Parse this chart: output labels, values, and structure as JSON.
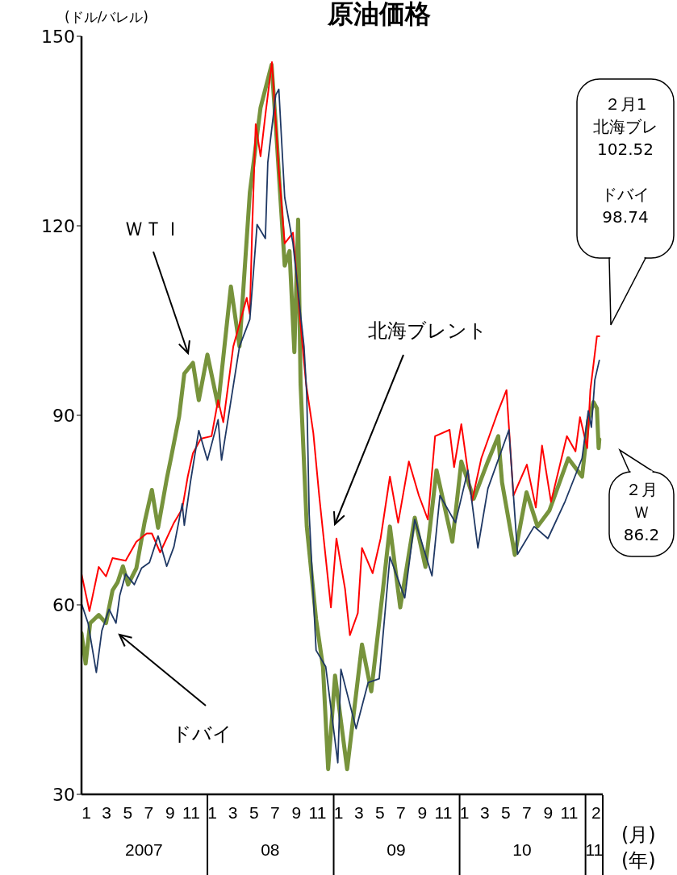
{
  "chart_data": {
    "type": "line",
    "title": "原油価格",
    "ylabel": "(ドル/バレル)",
    "xlabel": "(月)",
    "x2label": "(年)",
    "marker": "none",
    "xlim": [
      "2007-01-01",
      "2011-02-20"
    ],
    "ylim": [
      30,
      150
    ],
    "yticks": [
      30,
      60,
      90,
      120,
      150
    ],
    "xticks": [
      {
        "value": "2007-01-15",
        "label": "1"
      },
      {
        "value": "2007-03-15",
        "label": "3"
      },
      {
        "value": "2007-05-15",
        "label": "5"
      },
      {
        "value": "2007-07-15",
        "label": "7"
      },
      {
        "value": "2007-09-15",
        "label": "9"
      },
      {
        "value": "2007-11-15",
        "label": "11"
      },
      {
        "value": "2008-01-15",
        "label": "1"
      },
      {
        "value": "2008-03-15",
        "label": "3"
      },
      {
        "value": "2008-05-15",
        "label": "5"
      },
      {
        "value": "2008-07-15",
        "label": "7"
      },
      {
        "value": "2008-09-15",
        "label": "9"
      },
      {
        "value": "2008-11-15",
        "label": "11"
      },
      {
        "value": "2009-01-15",
        "label": "1"
      },
      {
        "value": "2009-03-15",
        "label": "3"
      },
      {
        "value": "2009-05-15",
        "label": "5"
      },
      {
        "value": "2009-07-15",
        "label": "7"
      },
      {
        "value": "2009-09-15",
        "label": "9"
      },
      {
        "value": "2009-11-15",
        "label": "11"
      },
      {
        "value": "2010-01-15",
        "label": "1"
      },
      {
        "value": "2010-03-15",
        "label": "3"
      },
      {
        "value": "2010-05-15",
        "label": "5"
      },
      {
        "value": "2010-07-15",
        "label": "7"
      },
      {
        "value": "2010-09-15",
        "label": "9"
      },
      {
        "value": "2010-11-15",
        "label": "11"
      },
      {
        "value": "2011-02-01",
        "label": "2"
      }
    ],
    "x2lim": [
      "2007-01-01",
      "2011-02-20"
    ],
    "x2ticks": [
      {
        "value": "2007-07-01",
        "label": "2007"
      },
      {
        "value": "2008-07-01",
        "label": "08"
      },
      {
        "value": "2009-07-01",
        "label": "09"
      },
      {
        "value": "2010-07-01",
        "label": "10"
      },
      {
        "value": "2011-01-26",
        "label": "11"
      }
    ],
    "series": [
      {
        "color": "#77933c",
        "x": [
          "2007-01-01",
          "2007-01-13",
          "2007-01-26",
          "2007-02-20",
          "2007-03-13",
          "2007-04-01",
          "2007-04-16",
          "2007-05-01",
          "2007-05-16",
          "2007-06-09",
          "2007-07-03",
          "2007-07-24",
          "2007-08-11",
          "2007-09-05",
          "2007-09-18",
          "2007-10-11",
          "2007-10-26",
          "2007-11-20",
          "2007-12-07",
          "2008-01-01",
          "2008-02-01",
          "2008-03-09",
          "2008-04-03",
          "2008-05-03",
          "2008-06-03",
          "2008-07-05",
          "2008-07-17",
          "2008-08-12",
          "2008-08-26",
          "2008-09-09",
          "2008-09-20",
          "2008-09-27",
          "2008-10-15",
          "2008-11-11",
          "2008-12-01",
          "2008-12-16",
          "2009-01-05",
          "2009-02-09",
          "2009-03-24",
          "2009-04-20",
          "2009-05-24",
          "2009-06-13",
          "2009-07-13",
          "2009-08-24",
          "2009-09-24",
          "2009-10-26",
          "2009-12-11",
          "2010-01-06",
          "2010-02-11",
          "2010-03-24",
          "2010-04-23",
          "2010-05-04",
          "2010-06-10",
          "2010-07-14",
          "2010-08-15",
          "2010-09-18",
          "2010-11-12",
          "2010-12-22",
          "2011-01-09",
          "2011-01-24",
          "2011-02-03",
          "2011-02-08",
          "2011-02-10"
        ],
        "values": [
          55.5,
          50.7,
          57.1,
          58.4,
          57.1,
          62.3,
          63.6,
          66.1,
          63.2,
          65.8,
          73.1,
          78.2,
          72.2,
          79.9,
          83.4,
          89.8,
          96.6,
          98.3,
          92.4,
          99.6,
          91.5,
          110.4,
          100.9,
          125.3,
          138.7,
          145.5,
          136.1,
          113.7,
          116,
          100,
          121,
          95,
          72.4,
          57.7,
          50.2,
          34,
          48.8,
          34,
          53.7,
          46.3,
          62.5,
          72.4,
          59.6,
          73.8,
          66,
          81.3,
          70,
          82.7,
          76.8,
          82.7,
          86.7,
          79.4,
          67.9,
          77.8,
          72.4,
          74.9,
          83.2,
          80.3,
          89.2,
          92.1,
          91.1,
          84.8,
          86.2
        ]
      },
      {
        "color": "#ff0000",
        "x": [
          "2007-01-01",
          "2007-01-24",
          "2007-02-20",
          "2007-03-13",
          "2007-04-01",
          "2007-05-09",
          "2007-06-09",
          "2007-07-09",
          "2007-07-24",
          "2007-08-17",
          "2007-09-26",
          "2007-10-20",
          "2007-11-05",
          "2007-11-20",
          "2007-12-13",
          "2008-01-13",
          "2008-02-01",
          "2008-02-16",
          "2008-03-16",
          "2008-04-24",
          "2008-05-03",
          "2008-05-10",
          "2008-05-20",
          "2008-06-03",
          "2008-06-18",
          "2008-07-06",
          "2008-07-26",
          "2008-08-12",
          "2008-09-05",
          "2008-09-26",
          "2008-10-13",
          "2008-11-03",
          "2008-11-20",
          "2008-12-24",
          "2009-01-09",
          "2009-02-03",
          "2009-02-17",
          "2009-03-12",
          "2009-03-24",
          "2009-04-24",
          "2009-05-17",
          "2009-06-13",
          "2009-07-07",
          "2009-08-07",
          "2009-09-05",
          "2009-10-01",
          "2009-10-22",
          "2009-12-03",
          "2009-12-16",
          "2010-01-06",
          "2010-02-06",
          "2010-03-05",
          "2010-04-23",
          "2010-05-17",
          "2010-06-06",
          "2010-07-15",
          "2010-08-10",
          "2010-08-28",
          "2010-09-23",
          "2010-11-08",
          "2010-12-03",
          "2010-12-16",
          "2011-01-06",
          "2011-01-15",
          "2011-01-24",
          "2011-02-03",
          "2011-02-10"
        ],
        "values": [
          64.9,
          59,
          66,
          64.5,
          67.4,
          67,
          70,
          71.3,
          71.3,
          68.3,
          73,
          75.2,
          80.3,
          84,
          86.3,
          86.7,
          92.4,
          88.9,
          100.9,
          108.6,
          106,
          120,
          136.1,
          131,
          138,
          145.9,
          128.8,
          117.2,
          118.9,
          105,
          95,
          87.2,
          77.3,
          59.6,
          70.5,
          62.5,
          55.2,
          58.7,
          69,
          65,
          70.5,
          80.3,
          73,
          82.7,
          77.3,
          73.5,
          86.7,
          87.7,
          81.8,
          88.6,
          76.4,
          83.2,
          90.7,
          94,
          77.3,
          82.2,
          75.4,
          85.2,
          76.3,
          86.7,
          84.3,
          89.7,
          84.8,
          94,
          98,
          102.5,
          102.5
        ]
      },
      {
        "color": "#1f3864",
        "x": [
          "2007-01-01",
          "2007-01-20",
          "2007-02-13",
          "2007-03-01",
          "2007-03-22",
          "2007-04-11",
          "2007-04-22",
          "2007-05-09",
          "2007-06-03",
          "2007-06-24",
          "2007-07-17",
          "2007-08-11",
          "2007-09-05",
          "2007-09-26",
          "2007-10-20",
          "2007-10-26",
          "2007-11-13",
          "2007-12-07",
          "2008-01-01",
          "2008-02-01",
          "2008-02-11",
          "2008-04-03",
          "2008-05-03",
          "2008-05-24",
          "2008-06-17",
          "2008-06-24",
          "2008-07-17",
          "2008-07-26",
          "2008-08-12",
          "2008-09-05",
          "2008-10-07",
          "2008-10-15",
          "2008-10-22",
          "2008-11-11",
          "2008-12-09",
          "2009-01-13",
          "2009-01-22",
          "2009-03-07",
          "2009-04-11",
          "2009-05-13",
          "2009-06-13",
          "2009-07-26",
          "2009-08-24",
          "2009-10-13",
          "2009-11-05",
          "2009-12-20",
          "2010-01-25",
          "2010-02-23",
          "2010-03-24",
          "2010-05-24",
          "2010-06-18",
          "2010-08-05",
          "2010-09-14",
          "2010-11-03",
          "2010-12-22",
          "2011-01-09",
          "2011-01-18",
          "2011-01-28",
          "2011-02-10"
        ],
        "values": [
          60.2,
          57.1,
          49.3,
          55.9,
          59.3,
          57.1,
          61.5,
          64.9,
          63.2,
          65.8,
          66.7,
          70.9,
          66.1,
          69.2,
          76,
          72.6,
          79.5,
          87.6,
          82.9,
          89.3,
          82.9,
          100.9,
          105.2,
          120.2,
          118,
          130,
          140.7,
          141.6,
          124.5,
          117.2,
          100.9,
          93.2,
          74.4,
          52.8,
          50.2,
          35,
          49.8,
          40.4,
          47.7,
          48.3,
          67.6,
          61.1,
          73.5,
          64.6,
          77.3,
          73,
          81.3,
          69,
          78.4,
          87.7,
          68,
          72.4,
          70.5,
          76.4,
          83.2,
          90.7,
          88.1,
          95.6,
          98.7
        ]
      }
    ],
    "annotations": [
      "ＷＴＩ",
      "北海ブレント",
      "ドバイ",
      "２月1",
      "北海ブレ",
      "102.52",
      "ドバイ",
      "98.74",
      "２月",
      "Ｗ",
      "86.2"
    ]
  }
}
